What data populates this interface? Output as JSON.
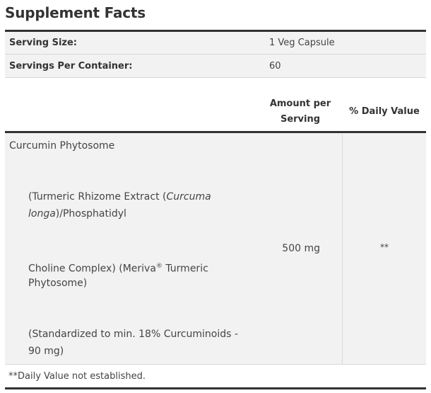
{
  "title": "Supplement Facts",
  "serving": {
    "size_label": "Serving Size:",
    "size_value": "1 Veg Capsule",
    "per_container_label": "Servings Per Container:",
    "per_container_value": "60"
  },
  "header": {
    "amount_line1": "Amount per",
    "amount_line2": "Serving",
    "daily_value": "% Daily Value"
  },
  "ingredient": {
    "name": "Curcumin Phytosome",
    "desc1_a": "(Turmeric Rhizome Extract (",
    "desc1_italic": "Curcuma",
    "desc2_italic": "longa",
    "desc2_b": ")/Phosphatidyl",
    "desc3_a": "Choline Complex) (Meriva",
    "desc3_reg": "®",
    "desc3_b": " Turmeric",
    "desc4": "Phytosome)",
    "desc5": "(Standardized to min. 18% Curcuminoids -",
    "desc6": "90 mg)",
    "amount": "500 mg",
    "daily_value": "**"
  },
  "footnote": "**Daily Value not established."
}
